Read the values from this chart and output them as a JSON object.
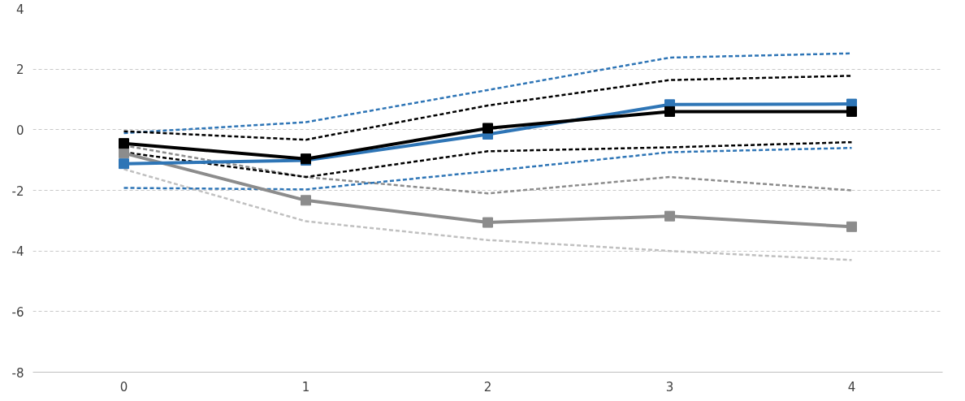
{
  "chart_data": {
    "type": "line",
    "categories": [
      "0",
      "1",
      "2",
      "3",
      "4"
    ],
    "series": [
      {
        "color": "#c0c0c0",
        "line_style": "dashed",
        "marker": "none",
        "values": [
          -1.3,
          -3.02,
          -3.64,
          -4.0,
          -4.3
        ]
      },
      {
        "color": "#8c8c8c",
        "line_style": "dashed",
        "marker": "none",
        "values": [
          -0.52,
          -1.56,
          -2.1,
          -1.56,
          -2.0
        ]
      },
      {
        "color": "#2e75b6",
        "line_style": "dashed",
        "marker": "none",
        "values": [
          -1.92,
          -1.97,
          -1.37,
          -0.74,
          -0.6
        ]
      },
      {
        "color": "#2e75b6",
        "line_style": "dashed",
        "marker": "none",
        "values": [
          -0.11,
          0.25,
          1.31,
          2.38,
          2.52
        ]
      },
      {
        "color": "#000000",
        "line_style": "dashed",
        "marker": "none",
        "values": [
          -0.74,
          -1.56,
          -0.71,
          -0.58,
          -0.41
        ]
      },
      {
        "color": "#000000",
        "line_style": "dashed",
        "marker": "none",
        "values": [
          -0.05,
          -0.33,
          0.8,
          1.64,
          1.78
        ]
      },
      {
        "color": "#8c8c8c",
        "line_style": "solid",
        "marker": "square",
        "values": [
          -0.77,
          -2.33,
          -3.06,
          -2.85,
          -3.2
        ]
      },
      {
        "color": "#2e75b6",
        "line_style": "solid",
        "marker": "square",
        "values": [
          -1.12,
          -1.01,
          -0.15,
          0.83,
          0.85
        ]
      },
      {
        "color": "#000000",
        "line_style": "solid",
        "marker": "square",
        "values": [
          -0.45,
          -0.96,
          0.05,
          0.6,
          0.6
        ]
      }
    ],
    "ylim": [
      -8,
      4
    ],
    "yticks": [
      -8,
      -6,
      -4,
      -2,
      0,
      2,
      4
    ],
    "grid": "y"
  }
}
